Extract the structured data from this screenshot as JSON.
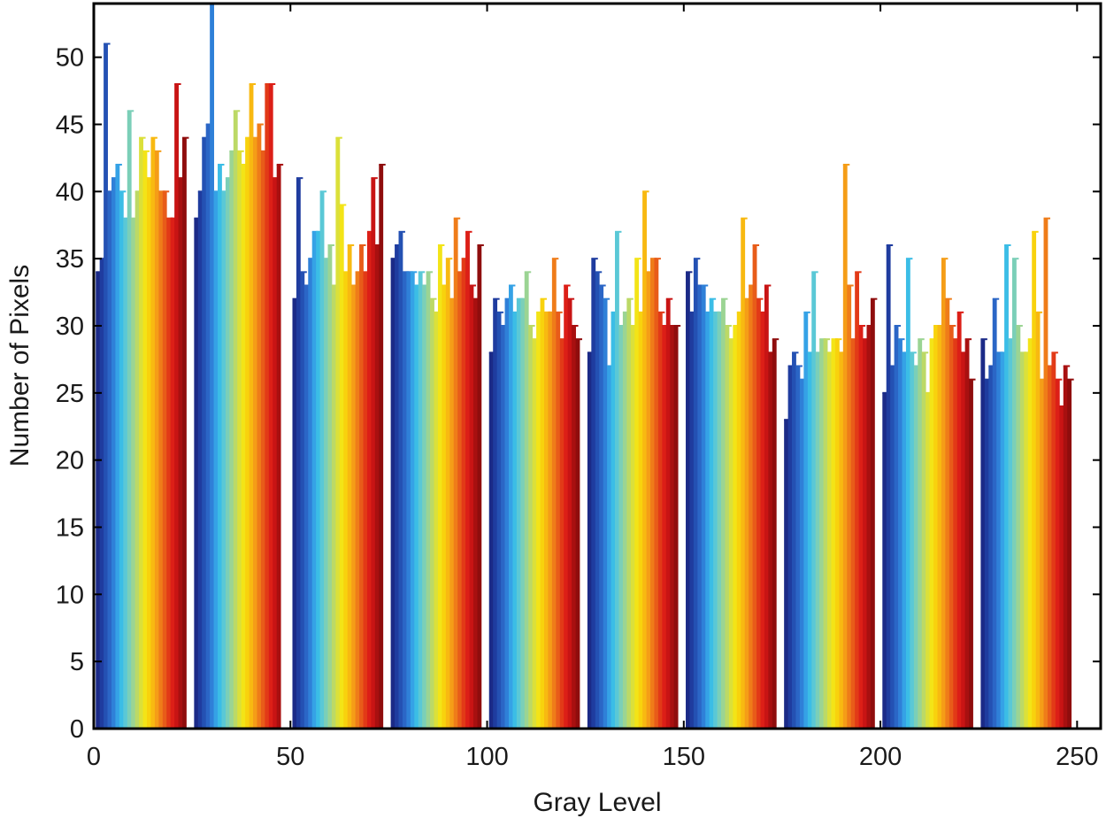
{
  "chart_data": {
    "type": "bar",
    "title": "",
    "xlabel": "Gray Level",
    "ylabel": "Number of Pixels",
    "xlim": [
      0,
      256
    ],
    "ylim": [
      0,
      54
    ],
    "xticks": [
      0,
      50,
      100,
      150,
      200,
      250
    ],
    "yticks": [
      0,
      5,
      10,
      15,
      20,
      25,
      30,
      35,
      40,
      45,
      50
    ],
    "grid": false,
    "legend": "none",
    "groups": [
      {
        "start": 1,
        "values": [
          34,
          35,
          51,
          40,
          41,
          42,
          40,
          38,
          46,
          38,
          40,
          44,
          43,
          41,
          44,
          43,
          40,
          40,
          38,
          38,
          48,
          41,
          44
        ]
      },
      {
        "start": 26,
        "values": [
          38,
          40,
          44,
          45,
          54,
          40,
          42,
          40,
          41,
          43,
          46,
          43,
          42,
          44,
          48,
          44,
          45,
          43,
          48,
          48,
          41,
          42
        ]
      },
      {
        "start": 51,
        "values": [
          32,
          41,
          34,
          33,
          35,
          37,
          37,
          40,
          35,
          36,
          33,
          44,
          39,
          34,
          36,
          33,
          34,
          36,
          34,
          37,
          41,
          36,
          42
        ]
      },
      {
        "start": 76,
        "values": [
          35,
          36,
          37,
          34,
          34,
          34,
          33,
          34,
          33,
          34,
          32,
          31,
          36,
          33,
          35,
          32,
          38,
          34,
          35,
          37,
          33,
          32,
          36
        ]
      },
      {
        "start": 101,
        "values": [
          28,
          32,
          31,
          30,
          32,
          33,
          31,
          32,
          32,
          34,
          30,
          29,
          31,
          32,
          31,
          31,
          35,
          31,
          29,
          33,
          32,
          30,
          29
        ]
      },
      {
        "start": 126,
        "values": [
          28,
          35,
          34,
          33,
          32,
          27,
          31,
          37,
          30,
          31,
          32,
          30,
          35,
          31,
          40,
          34,
          35,
          35,
          31,
          30,
          32,
          30,
          30
        ]
      },
      {
        "start": 151,
        "values": [
          34,
          31,
          35,
          33,
          33,
          31,
          32,
          31,
          31,
          32,
          30,
          29,
          30,
          31,
          38,
          32,
          33,
          36,
          32,
          31,
          33,
          28,
          29
        ]
      },
      {
        "start": 176,
        "values": [
          23,
          27,
          28,
          27,
          26,
          31,
          28,
          34,
          28,
          29,
          29,
          28,
          29,
          29,
          28,
          42,
          33,
          29,
          34,
          30,
          29,
          30,
          32
        ]
      },
      {
        "start": 201,
        "values": [
          25,
          36,
          27,
          30,
          29,
          28,
          35,
          28,
          27,
          29,
          28,
          25,
          29,
          30,
          30,
          35,
          32,
          30,
          29,
          31,
          28,
          29,
          26
        ]
      },
      {
        "start": 226,
        "values": [
          29,
          26,
          27,
          32,
          28,
          28,
          36,
          29,
          35,
          30,
          28,
          28,
          29,
          37,
          31,
          26,
          38,
          27,
          28,
          26,
          24,
          27,
          26
        ]
      }
    ],
    "colors": [
      "#1b2a87",
      "#1f3c9f",
      "#2451b3",
      "#2b66c6",
      "#2f80d8",
      "#35a2e6",
      "#3bbde6",
      "#5ac8d6",
      "#7bcfb8",
      "#9bd493",
      "#bcd966",
      "#dbe03a",
      "#f3e417",
      "#f8d20d",
      "#f8b911",
      "#f59d17",
      "#ef7c19",
      "#e85c19",
      "#e23a17",
      "#dc1f17",
      "#c81414",
      "#a81010",
      "#8f0d0d"
    ]
  }
}
